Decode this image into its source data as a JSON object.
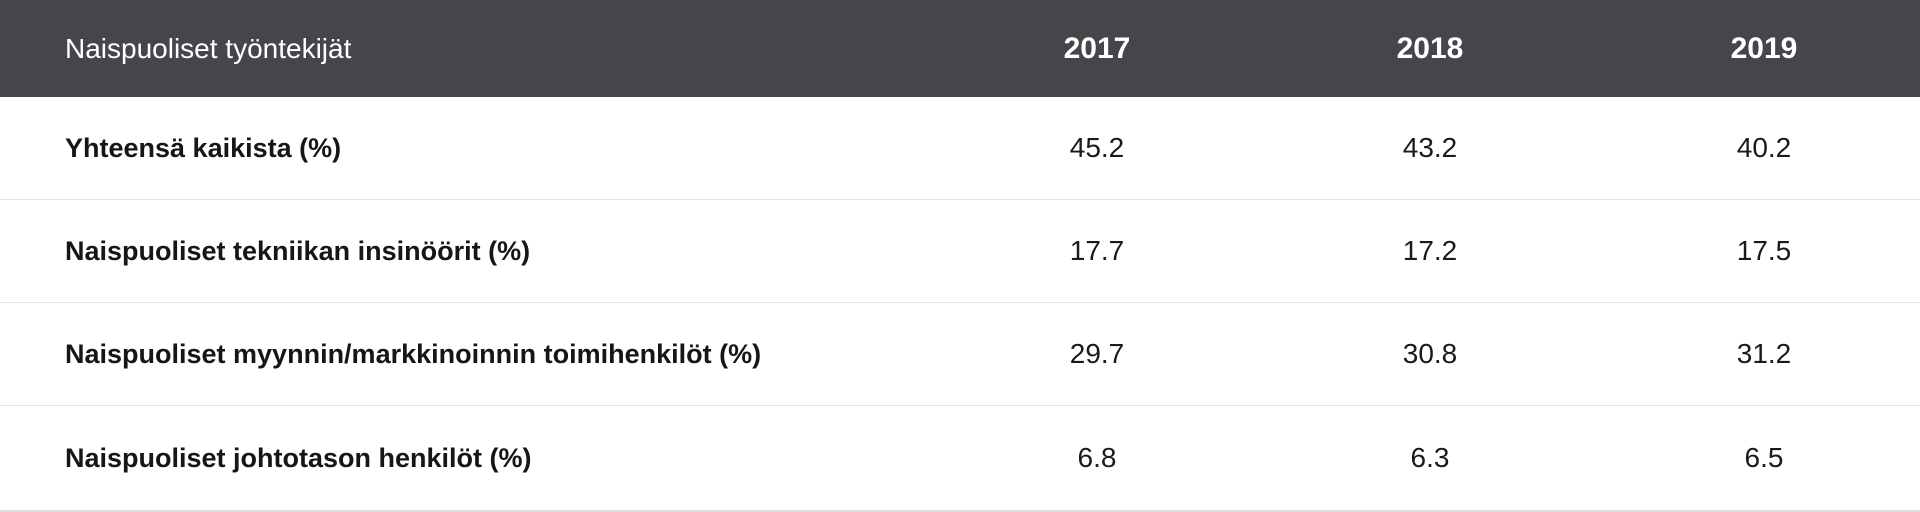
{
  "table": {
    "header": {
      "label": "Naispuoliset työntekijät",
      "years": [
        "2017",
        "2018",
        "2019"
      ]
    },
    "rows": [
      {
        "label": "Yhteensä kaikista (%)",
        "values": [
          "45.2",
          "43.2",
          "40.2"
        ]
      },
      {
        "label": "Naispuoliset tekniikan insinöörit (%)",
        "values": [
          "17.7",
          "17.2",
          "17.5"
        ]
      },
      {
        "label": "Naispuoliset myynnin/markkinoinnin toimihenkilöt (%)",
        "values": [
          "29.7",
          "30.8",
          "31.2"
        ]
      },
      {
        "label": "Naispuoliset johtotason henkilöt (%)",
        "values": [
          "6.8",
          "6.3",
          "6.5"
        ]
      }
    ]
  },
  "colors": {
    "header_background": "#454649",
    "header_text": "#ffffff",
    "row_divider": "#e3e3e3"
  }
}
